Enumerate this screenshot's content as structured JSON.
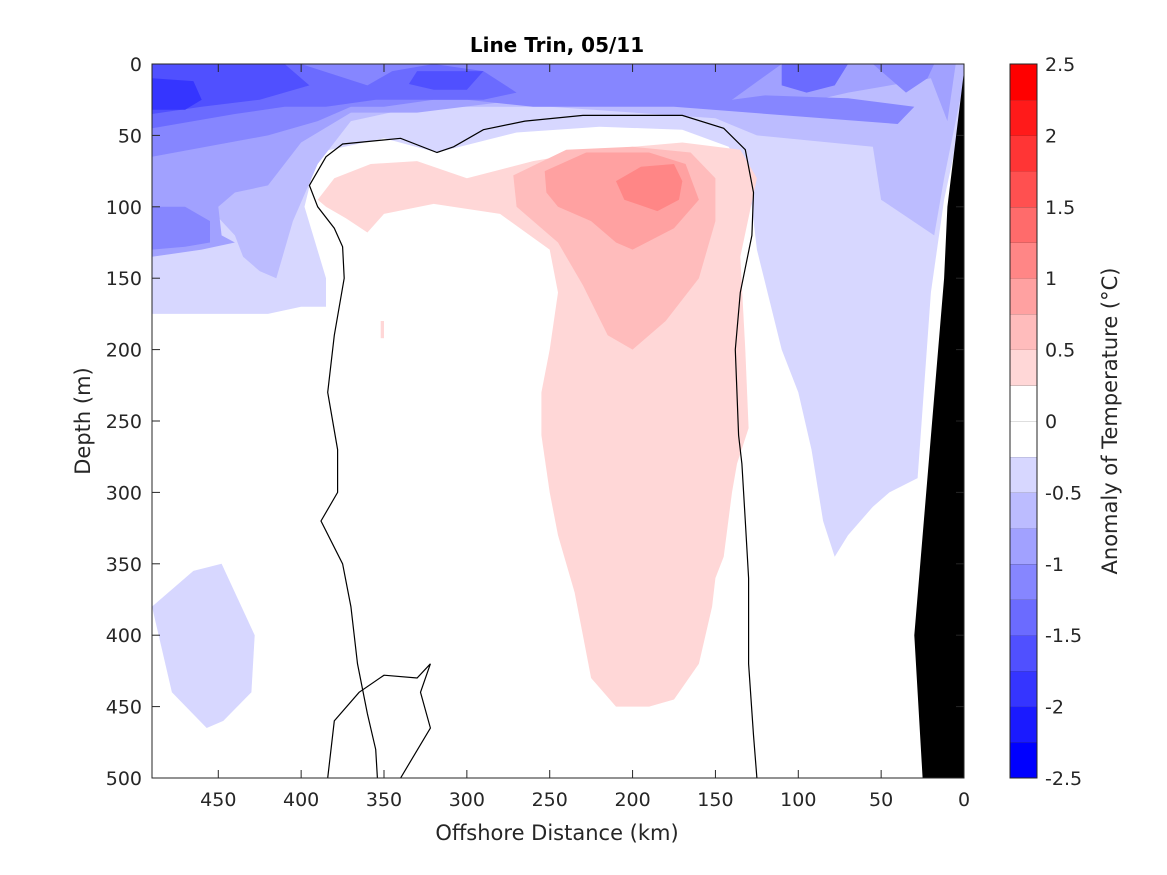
{
  "chart_data": {
    "type": "heatmap",
    "title": "Line Trin, 05/11",
    "xlabel": "Offshore Distance (km)",
    "ylabel": "Depth (m)",
    "colorbar_label": "Anomaly of Temperature (°C)",
    "x_reversed": true,
    "y_reversed": true,
    "xlim": [
      0,
      490
    ],
    "ylim": [
      0,
      500
    ],
    "x_ticks": [
      450,
      400,
      350,
      300,
      250,
      200,
      150,
      100,
      50,
      0
    ],
    "y_ticks": [
      0,
      50,
      100,
      150,
      200,
      250,
      300,
      350,
      400,
      450,
      500
    ],
    "colorbar": {
      "range": [
        -2.5,
        2.5
      ],
      "step": 0.25,
      "ticks": [
        "-2.5",
        "-2",
        "-1.5",
        "-1",
        "-0.5",
        "0",
        "0.5",
        "1",
        "1.5",
        "2",
        "2.5"
      ],
      "colors": [
        "#0000ff",
        "#1a1aff",
        "#3535ff",
        "#5050ff",
        "#6b6bff",
        "#8686ff",
        "#a1a1ff",
        "#bcbcff",
        "#d7d7ff",
        "#ffffff",
        "#ffffff",
        "#ffd7d7",
        "#ffbcbc",
        "#ffa1a1",
        "#ff8686",
        "#ff6b6b",
        "#ff5050",
        "#ff3535",
        "#ff1a1a",
        "#ff0000"
      ]
    },
    "contour_levels": [
      -2,
      -1.75,
      -1.5,
      -1.25,
      -1,
      -0.75,
      -0.5,
      -0.25,
      0.25,
      0.5,
      0.75,
      1
    ],
    "regions": [
      {
        "level": -0.25,
        "polygons": [
          [
            [
              490,
              0
            ],
            [
              0,
              0
            ],
            [
              0,
              30
            ],
            [
              12,
              95
            ],
            [
              20,
              160
            ],
            [
              28,
              290
            ],
            [
              45,
              300
            ],
            [
              55,
              310
            ],
            [
              70,
              330
            ],
            [
              78,
              345
            ],
            [
              85,
              320
            ],
            [
              92,
              270
            ],
            [
              100,
              230
            ],
            [
              110,
              200
            ],
            [
              125,
              130
            ],
            [
              130,
              80
            ],
            [
              142,
              58
            ],
            [
              170,
              46
            ],
            [
              220,
              44
            ],
            [
              270,
              48
            ],
            [
              318,
              62
            ],
            [
              350,
              52
            ],
            [
              390,
              62
            ],
            [
              398,
              100
            ],
            [
              385,
              150
            ],
            [
              385,
              170
            ],
            [
              400,
              170
            ],
            [
              420,
              175
            ],
            [
              490,
              175
            ]
          ],
          [
            [
              490,
              380
            ],
            [
              465,
              355
            ],
            [
              448,
              350
            ],
            [
              428,
              400
            ],
            [
              430,
              440
            ],
            [
              447,
              460
            ],
            [
              457,
              465
            ],
            [
              478,
              440
            ]
          ]
        ]
      },
      {
        "level": -0.5,
        "polygons": [
          [
            [
              490,
              0
            ],
            [
              0,
              0
            ],
            [
              0,
              12
            ],
            [
              5,
              40
            ],
            [
              12,
              80
            ],
            [
              18,
              120
            ],
            [
              50,
              95
            ],
            [
              55,
              58
            ],
            [
              125,
              50
            ],
            [
              150,
              38
            ],
            [
              250,
              30
            ],
            [
              330,
              30
            ],
            [
              370,
              40
            ],
            [
              390,
              70
            ],
            [
              405,
              110
            ],
            [
              415,
              150
            ],
            [
              425,
              145
            ],
            [
              435,
              135
            ],
            [
              440,
              120
            ],
            [
              460,
              95
            ],
            [
              490,
              90
            ]
          ]
        ]
      },
      {
        "level": -0.75,
        "polygons": [
          [
            [
              490,
              0
            ],
            [
              5,
              0
            ],
            [
              10,
              40
            ],
            [
              20,
              10
            ],
            [
              70,
              20
            ],
            [
              100,
              28
            ],
            [
              180,
              22
            ],
            [
              260,
              24
            ],
            [
              330,
              34
            ],
            [
              370,
              34
            ],
            [
              400,
              55
            ],
            [
              420,
              85
            ],
            [
              440,
              90
            ],
            [
              450,
              100
            ],
            [
              448,
              120
            ],
            [
              440,
              125
            ],
            [
              460,
              130
            ],
            [
              490,
              135
            ]
          ]
        ]
      },
      {
        "level": -1,
        "polygons": [
          [
            [
              490,
              0
            ],
            [
              18,
              0
            ],
            [
              22,
              10
            ],
            [
              35,
              20
            ],
            [
              55,
              0
            ],
            [
              110,
              0
            ],
            [
              140,
              25
            ],
            [
              120,
              22
            ],
            [
              70,
              24
            ],
            [
              30,
              30
            ],
            [
              40,
              42
            ],
            [
              175,
              30
            ],
            [
              260,
              30
            ],
            [
              300,
              25
            ],
            [
              320,
              25
            ],
            [
              350,
              30
            ],
            [
              370,
              30
            ],
            [
              390,
              40
            ],
            [
              420,
              50
            ],
            [
              490,
              65
            ]
          ],
          [
            [
              490,
              100
            ],
            [
              470,
              100
            ],
            [
              455,
              110
            ],
            [
              455,
              125
            ],
            [
              470,
              128
            ],
            [
              490,
              130
            ]
          ]
        ]
      },
      {
        "level": -1.25,
        "polygons": [
          [
            [
              490,
              0
            ],
            [
              400,
              0
            ],
            [
              360,
              15
            ],
            [
              345,
              5
            ],
            [
              320,
              0
            ],
            [
              290,
              5
            ],
            [
              270,
              20
            ],
            [
              290,
              25
            ],
            [
              320,
              25
            ],
            [
              355,
              25
            ],
            [
              385,
              30
            ],
            [
              410,
              30
            ],
            [
              440,
              35
            ],
            [
              490,
              45
            ]
          ],
          [
            [
              110,
              0
            ],
            [
              70,
              0
            ],
            [
              78,
              15
            ],
            [
              95,
              20
            ],
            [
              110,
              15
            ]
          ]
        ]
      },
      {
        "level": -1.5,
        "polygons": [
          [
            [
              490,
              0
            ],
            [
              410,
              0
            ],
            [
              395,
              15
            ],
            [
              425,
              25
            ],
            [
              460,
              30
            ],
            [
              490,
              35
            ]
          ],
          [
            [
              330,
              5
            ],
            [
              290,
              5
            ],
            [
              300,
              18
            ],
            [
              320,
              18
            ],
            [
              335,
              14
            ]
          ]
        ]
      },
      {
        "level": -1.75,
        "polygons": [
          [
            [
              490,
              10
            ],
            [
              465,
              12
            ],
            [
              460,
              25
            ],
            [
              470,
              32
            ],
            [
              490,
              32
            ]
          ]
        ]
      },
      {
        "level": 0.25,
        "polygons": [
          [
            [
              380,
              80
            ],
            [
              358,
              70
            ],
            [
              330,
              68
            ],
            [
              300,
              80
            ],
            [
              260,
              68
            ],
            [
              220,
              60
            ],
            [
              170,
              55
            ],
            [
              135,
              60
            ],
            [
              125,
              80
            ],
            [
              135,
              135
            ],
            [
              132,
              200
            ],
            [
              130,
              255
            ],
            [
              137,
              280
            ],
            [
              140,
              300
            ],
            [
              145,
              345
            ],
            [
              150,
              360
            ],
            [
              152,
              380
            ],
            [
              160,
              420
            ],
            [
              175,
              445
            ],
            [
              190,
              450
            ],
            [
              210,
              450
            ],
            [
              225,
              430
            ],
            [
              230,
              400
            ],
            [
              235,
              370
            ],
            [
              245,
              330
            ],
            [
              250,
              300
            ],
            [
              255,
              260
            ],
            [
              255,
              230
            ],
            [
              250,
              200
            ],
            [
              245,
              160
            ],
            [
              250,
              130
            ],
            [
              280,
              105
            ],
            [
              320,
              98
            ],
            [
              350,
              105
            ],
            [
              360,
              118
            ],
            [
              373,
              108
            ],
            [
              385,
              100
            ],
            [
              390,
              95
            ]
          ],
          [
            [
              352,
              180
            ],
            [
              352,
              192
            ],
            [
              350,
              192
            ],
            [
              350,
              180
            ]
          ]
        ]
      },
      {
        "level": 0.5,
        "polygons": [
          [
            [
              272,
              78
            ],
            [
              240,
              60
            ],
            [
              200,
              58
            ],
            [
              165,
              62
            ],
            [
              150,
              80
            ],
            [
              150,
              110
            ],
            [
              160,
              150
            ],
            [
              180,
              180
            ],
            [
              200,
              200
            ],
            [
              215,
              190
            ],
            [
              230,
              155
            ],
            [
              245,
              125
            ],
            [
              270,
              100
            ]
          ]
        ]
      },
      {
        "level": 0.75,
        "polygons": [
          [
            [
              253,
              75
            ],
            [
              228,
              62
            ],
            [
              190,
              62
            ],
            [
              168,
              70
            ],
            [
              160,
              95
            ],
            [
              175,
              115
            ],
            [
              200,
              130
            ],
            [
              210,
              125
            ],
            [
              225,
              110
            ],
            [
              245,
              100
            ],
            [
              252,
              90
            ]
          ]
        ]
      },
      {
        "level": 1,
        "polygons": [
          [
            [
              210,
              82
            ],
            [
              195,
              72
            ],
            [
              175,
              70
            ],
            [
              170,
              82
            ],
            [
              172,
              95
            ],
            [
              185,
              103
            ],
            [
              205,
              95
            ]
          ]
        ]
      }
    ],
    "zero_contours": [
      [
        [
          125,
          500
        ],
        [
          127,
          470
        ],
        [
          130,
          420
        ],
        [
          130,
          360
        ],
        [
          132,
          320
        ],
        [
          134,
          280
        ],
        [
          136,
          260
        ],
        [
          138,
          200
        ],
        [
          135,
          160
        ],
        [
          128,
          120
        ],
        [
          127,
          90
        ],
        [
          132,
          60
        ],
        [
          145,
          45
        ],
        [
          170,
          36
        ],
        [
          230,
          36
        ],
        [
          265,
          40
        ],
        [
          290,
          46
        ],
        [
          308,
          58
        ],
        [
          318,
          62
        ],
        [
          340,
          52
        ],
        [
          375,
          56
        ],
        [
          385,
          65
        ],
        [
          395,
          85
        ],
        [
          390,
          100
        ],
        [
          380,
          115
        ],
        [
          375,
          128
        ],
        [
          374,
          150
        ],
        [
          380,
          190
        ],
        [
          384,
          230
        ],
        [
          378,
          270
        ],
        [
          378,
          300
        ],
        [
          388,
          320
        ],
        [
          375,
          350
        ],
        [
          370,
          380
        ],
        [
          366,
          420
        ],
        [
          360,
          455
        ],
        [
          355,
          480
        ],
        [
          354,
          500
        ]
      ],
      [
        [
          340,
          500
        ],
        [
          322,
          465
        ],
        [
          328,
          440
        ],
        [
          322,
          420
        ],
        [
          330,
          430
        ],
        [
          350,
          428
        ],
        [
          365,
          440
        ],
        [
          380,
          460
        ],
        [
          384,
          500
        ]
      ]
    ],
    "land_polygon": [
      [
        0,
        5
      ],
      [
        0,
        500
      ],
      [
        25,
        500
      ],
      [
        30,
        400
      ],
      [
        12,
        150
      ],
      [
        10,
        100
      ]
    ]
  }
}
